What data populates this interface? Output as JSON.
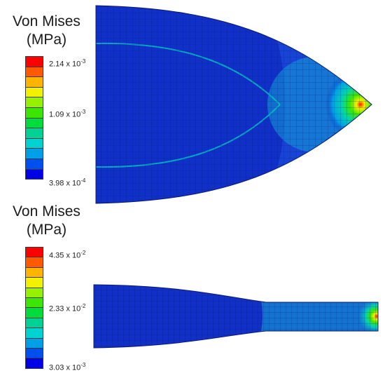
{
  "panels": [
    {
      "legend_title_line1": "Von Mises",
      "legend_title_line2": "(MPa)",
      "legend_labels": [
        {
          "mantissa": "2.14 x 10",
          "exponent": "-3"
        },
        {
          "mantissa": "1.09 x 10",
          "exponent": "-3"
        },
        {
          "mantissa": "3.98 x 10",
          "exponent": "-4"
        }
      ]
    },
    {
      "legend_title_line1": "Von Mises",
      "legend_title_line2": "(MPa)",
      "legend_labels": [
        {
          "mantissa": "4.35 x 10",
          "exponent": "-2"
        },
        {
          "mantissa": "2.33 x 10",
          "exponent": "-2"
        },
        {
          "mantissa": "3.03 x 10",
          "exponent": "-3"
        }
      ]
    }
  ],
  "colormap": [
    "#ff0000",
    "#ff5a00",
    "#ffb400",
    "#f2f200",
    "#96f000",
    "#3ce600",
    "#00dc3c",
    "#00d296",
    "#00d2d2",
    "#00a0e6",
    "#0050f0",
    "#0000e6"
  ],
  "colors": {
    "model_base": "#1030c8",
    "mesh_line": "#0a1a70"
  }
}
